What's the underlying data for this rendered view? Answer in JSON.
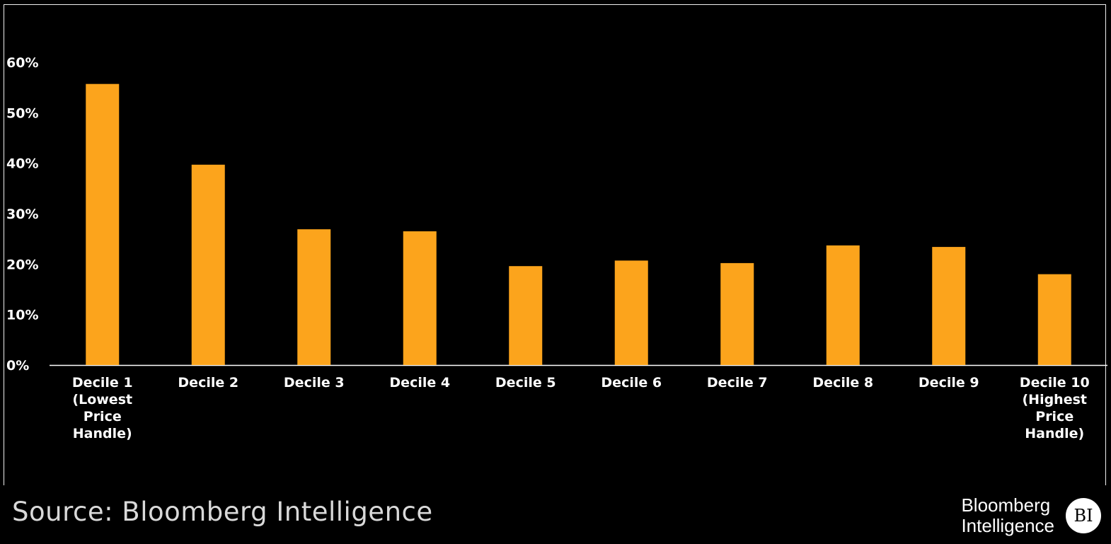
{
  "chart_data": {
    "type": "bar",
    "title": "",
    "xlabel": "",
    "ylabel": "",
    "ylim": [
      0,
      60
    ],
    "yticks": [
      "0%",
      "10%",
      "20%",
      "30%",
      "40%",
      "50%",
      "60%"
    ],
    "categories": [
      [
        "Decile 1",
        "(Lowest",
        "Price",
        "Handle)"
      ],
      [
        "Decile 2"
      ],
      [
        "Decile 3"
      ],
      [
        "Decile 4"
      ],
      [
        "Decile 5"
      ],
      [
        "Decile 6"
      ],
      [
        "Decile 7"
      ],
      [
        "Decile 8"
      ],
      [
        "Decile 9"
      ],
      [
        "Decile 10",
        "(Highest",
        "Price",
        "Handle)"
      ]
    ],
    "values": [
      55.7,
      39.7,
      26.9,
      26.5,
      19.6,
      20.7,
      20.2,
      23.7,
      23.4,
      18.0
    ],
    "grid": false,
    "legend": "none",
    "bar_color": "#fca41c"
  },
  "footer": {
    "source": "Source: Bloomberg Intelligence",
    "brand_line1": "Bloomberg",
    "brand_line2": "Intelligence",
    "logo_text": "BI"
  }
}
